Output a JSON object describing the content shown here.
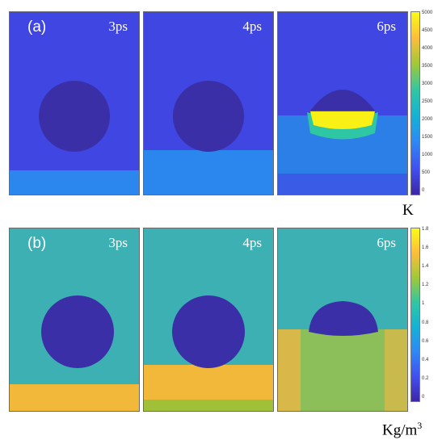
{
  "row_a": {
    "label": "(a)",
    "times": [
      "3ps",
      "4ps",
      "6ps"
    ],
    "colorbar_ticks": [
      "5000",
      "4500",
      "4000",
      "3500",
      "3000",
      "2500",
      "2000",
      "1500",
      "1000",
      "500",
      "0"
    ],
    "unit": "K"
  },
  "row_b": {
    "label": "(b)",
    "times": [
      "3ps",
      "4ps",
      "6ps"
    ],
    "colorbar_ticks": [
      "1.8",
      "1.6",
      "1.4",
      "1.2",
      "1",
      "0.8",
      "0.6",
      "0.4",
      "0.2",
      "0"
    ],
    "unit_base": "Kg/m",
    "unit_exp": "3"
  },
  "colormap": [
    "#3e26a8",
    "#4150f0",
    "#2e87f7",
    "#14b2d7",
    "#2fc7a3",
    "#9fc937",
    "#fdbd3c",
    "#f9fb15"
  ]
}
